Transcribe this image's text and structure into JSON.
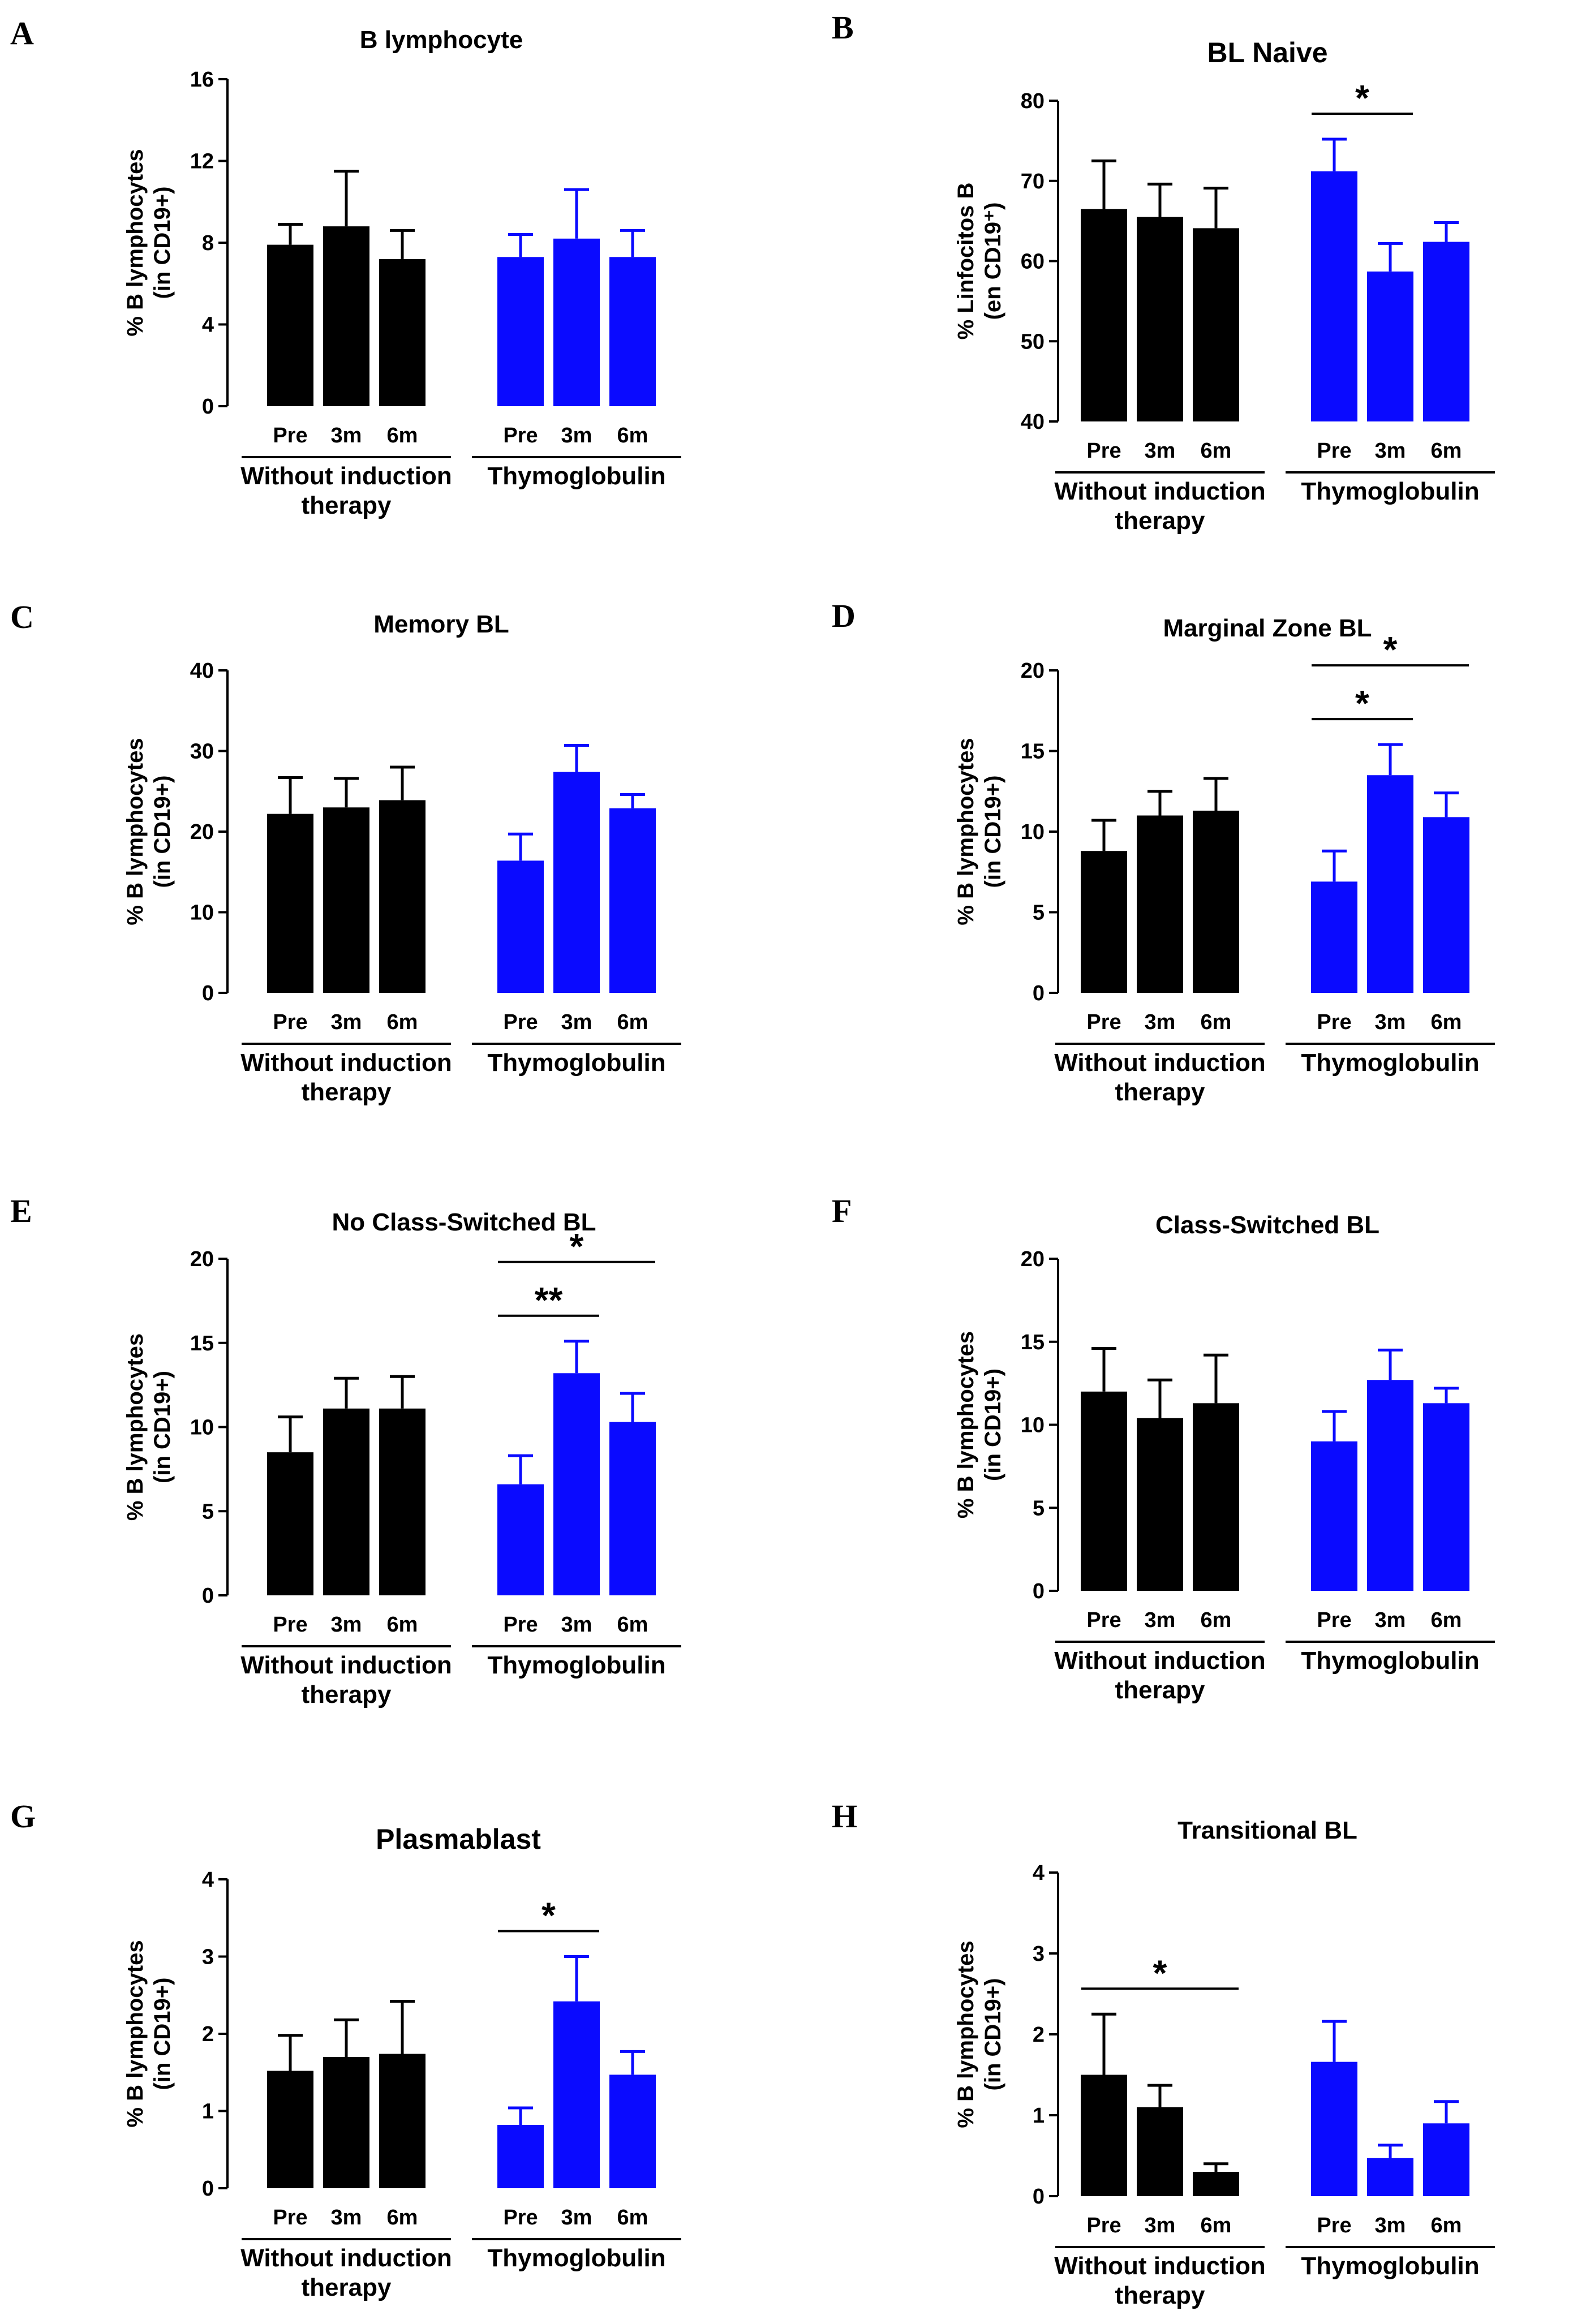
{
  "colors": {
    "without_induction": "#000000",
    "thymoglobulin": "#0a0aff",
    "axis": "#000000"
  },
  "chart_data": [
    {
      "panel": "A",
      "type": "bar",
      "title": "B lymphocyte",
      "ylabel": [
        "% B lymphocytes",
        "(in CD19+)"
      ],
      "ylim": [
        0,
        16
      ],
      "yticks": [
        "0",
        "4",
        "8",
        "12",
        "16"
      ],
      "categories": [
        "Pre",
        "3m",
        "6m"
      ],
      "groups": [
        {
          "name": [
            "Without induction",
            "therapy"
          ],
          "color": "#000000",
          "values": [
            7.9,
            8.8,
            7.2
          ],
          "errors": [
            1.0,
            2.7,
            1.4
          ]
        },
        {
          "name": [
            "Thymoglobulin"
          ],
          "color": "#0a0aff",
          "values": [
            7.3,
            8.2,
            7.3
          ],
          "errors": [
            1.1,
            2.4,
            1.3
          ]
        }
      ],
      "significance": []
    },
    {
      "panel": "B",
      "type": "bar",
      "title": "BL Naive",
      "ylabel": [
        "% Linfocitos B",
        "(en CD19⁺)"
      ],
      "ylim": [
        40,
        80
      ],
      "yticks": [
        "40",
        "50",
        "60",
        "70",
        "80"
      ],
      "categories": [
        "Pre",
        "3m",
        "6m"
      ],
      "groups": [
        {
          "name": [
            "Without induction",
            "therapy"
          ],
          "color": "#000000",
          "values": [
            66.5,
            65.5,
            64.1
          ],
          "errors": [
            6.0,
            4.1,
            5.0
          ]
        },
        {
          "name": [
            "Thymoglobulin"
          ],
          "color": "#0a0aff",
          "values": [
            71.2,
            58.7,
            62.4
          ],
          "errors": [
            4.0,
            3.5,
            2.4
          ]
        }
      ],
      "significance": [
        {
          "group": 1,
          "from": 0,
          "to": 1,
          "label": "*"
        }
      ]
    },
    {
      "panel": "C",
      "type": "bar",
      "title": "Memory BL",
      "ylabel": [
        "% B lymphocytes",
        "(in CD19+)"
      ],
      "ylim": [
        0,
        40
      ],
      "yticks": [
        "0",
        "10",
        "20",
        "30",
        "40"
      ],
      "categories": [
        "Pre",
        "3m",
        "6m"
      ],
      "groups": [
        {
          "name": [
            "Without induction",
            "therapy"
          ],
          "color": "#000000",
          "values": [
            22.2,
            23.0,
            23.9
          ],
          "errors": [
            4.5,
            3.6,
            4.1
          ]
        },
        {
          "name": [
            "Thymoglobulin"
          ],
          "color": "#0a0aff",
          "values": [
            16.4,
            27.4,
            22.9
          ],
          "errors": [
            3.3,
            3.3,
            1.7
          ]
        }
      ],
      "significance": []
    },
    {
      "panel": "D",
      "type": "bar",
      "title": "Marginal Zone BL",
      "ylabel": [
        "% B lymphocytes",
        "(in CD19+)"
      ],
      "ylim": [
        0,
        20
      ],
      "yticks": [
        "0",
        "5",
        "10",
        "15",
        "20"
      ],
      "categories": [
        "Pre",
        "3m",
        "6m"
      ],
      "groups": [
        {
          "name": [
            "Without induction",
            "therapy"
          ],
          "color": "#000000",
          "values": [
            8.8,
            11.0,
            11.3
          ],
          "errors": [
            1.9,
            1.5,
            2.0
          ]
        },
        {
          "name": [
            "Thymoglobulin"
          ],
          "color": "#0a0aff",
          "values": [
            6.9,
            13.5,
            10.9
          ],
          "errors": [
            1.9,
            1.9,
            1.5
          ]
        }
      ],
      "significance": [
        {
          "group": 1,
          "from": 0,
          "to": 1,
          "label": "*"
        },
        {
          "group": 1,
          "from": 0,
          "to": 2,
          "label": "*"
        }
      ]
    },
    {
      "panel": "E",
      "type": "bar",
      "title": "No Class-Switched BL",
      "ylabel": [
        "% B lymphocytes",
        "(in CD19+)"
      ],
      "ylim": [
        0,
        20
      ],
      "yticks": [
        "0",
        "5",
        "10",
        "15",
        "20"
      ],
      "categories": [
        "Pre",
        "3m",
        "6m"
      ],
      "groups": [
        {
          "name": [
            "Without induction",
            "therapy"
          ],
          "color": "#000000",
          "values": [
            8.5,
            11.1,
            11.1
          ],
          "errors": [
            2.1,
            1.8,
            1.9
          ]
        },
        {
          "name": [
            "Thymoglobulin"
          ],
          "color": "#0a0aff",
          "values": [
            6.6,
            13.2,
            10.3
          ],
          "errors": [
            1.7,
            1.9,
            1.7
          ]
        }
      ],
      "significance": [
        {
          "group": 1,
          "from": 0,
          "to": 1,
          "label": "**"
        },
        {
          "group": 1,
          "from": 0,
          "to": 2,
          "label": "*"
        }
      ]
    },
    {
      "panel": "F",
      "type": "bar",
      "title": "Class-Switched BL",
      "ylabel": [
        "% B lymphocytes",
        "(in CD19+)"
      ],
      "ylim": [
        0,
        20
      ],
      "yticks": [
        "0",
        "5",
        "10",
        "15",
        "20"
      ],
      "categories": [
        "Pre",
        "3m",
        "6m"
      ],
      "groups": [
        {
          "name": [
            "Without induction",
            "therapy"
          ],
          "color": "#000000",
          "values": [
            12.0,
            10.4,
            11.3
          ],
          "errors": [
            2.6,
            2.3,
            2.9
          ]
        },
        {
          "name": [
            "Thymoglobulin"
          ],
          "color": "#0a0aff",
          "values": [
            9.0,
            12.7,
            11.3
          ],
          "errors": [
            1.8,
            1.8,
            0.9
          ]
        }
      ],
      "significance": []
    },
    {
      "panel": "G",
      "type": "bar",
      "title": "Plasmablast",
      "ylabel": [
        "% B lymphocytes",
        "(in CD19+)"
      ],
      "ylim": [
        0,
        4
      ],
      "yticks": [
        "0",
        "1",
        "2",
        "3",
        "4"
      ],
      "categories": [
        "Pre",
        "3m",
        "6m"
      ],
      "groups": [
        {
          "name": [
            "Without induction",
            "therapy"
          ],
          "color": "#000000",
          "values": [
            1.52,
            1.7,
            1.74
          ],
          "errors": [
            0.46,
            0.48,
            0.68
          ]
        },
        {
          "name": [
            "Thymoglobulin"
          ],
          "color": "#0a0aff",
          "values": [
            0.82,
            2.42,
            1.47
          ],
          "errors": [
            0.22,
            0.58,
            0.3
          ]
        }
      ],
      "significance": [
        {
          "group": 1,
          "from": 0,
          "to": 1,
          "label": "*"
        }
      ]
    },
    {
      "panel": "H",
      "type": "bar",
      "title": "Transitional BL",
      "ylabel": [
        "% B lymphocytes",
        "(in CD19+)"
      ],
      "ylim": [
        0,
        4
      ],
      "yticks": [
        "0",
        "1",
        "2",
        "3",
        "4"
      ],
      "categories": [
        "Pre",
        "3m",
        "6m"
      ],
      "groups": [
        {
          "name": [
            "Without induction",
            "therapy"
          ],
          "color": "#000000",
          "values": [
            1.5,
            1.1,
            0.3
          ],
          "errors": [
            0.75,
            0.27,
            0.1
          ]
        },
        {
          "name": [
            "Thymoglobulin"
          ],
          "color": "#0a0aff",
          "values": [
            1.66,
            0.47,
            0.9
          ],
          "errors": [
            0.5,
            0.16,
            0.27
          ]
        }
      ],
      "significance": [
        {
          "group": 0,
          "from": 0,
          "to": 2,
          "label": "*"
        }
      ]
    }
  ]
}
